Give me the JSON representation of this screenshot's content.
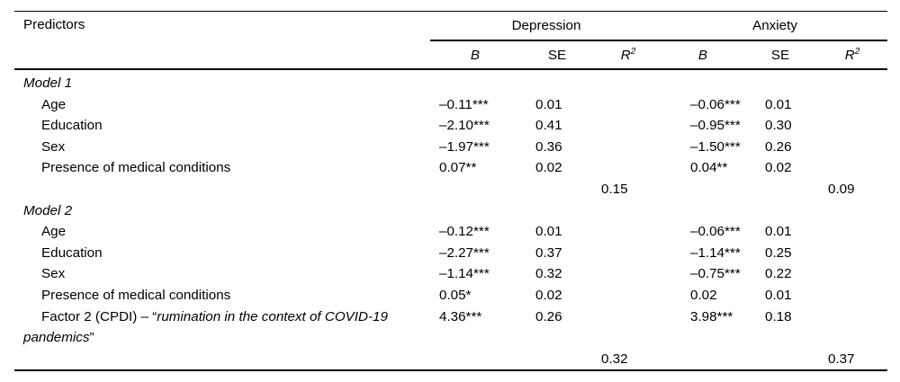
{
  "table": {
    "header": {
      "predictors": "Predictors",
      "group_depression": "Depression",
      "group_anxiety": "Anxiety",
      "col_b": "B",
      "col_se": "SE",
      "col_r2_base": "R",
      "col_r2_sup": "2"
    },
    "rows": [
      {
        "type": "model",
        "label": "Model 1"
      },
      {
        "type": "predictor",
        "label": "Age",
        "dep_b": "–0.11***",
        "dep_se": "0.01",
        "anx_b": "–0.06***",
        "anx_se": "0.01"
      },
      {
        "type": "predictor",
        "label": "Education",
        "dep_b": "–2.10***",
        "dep_se": "0.41",
        "anx_b": "–0.95***",
        "anx_se": "0.30"
      },
      {
        "type": "predictor",
        "label": "Sex",
        "dep_b": "–1.97***",
        "dep_se": "0.36",
        "anx_b": "–1.50***",
        "anx_se": "0.26"
      },
      {
        "type": "predictor",
        "label": "Presence of medical conditions",
        "dep_b": "0.07**",
        "dep_se": "0.02",
        "anx_b": "0.04**",
        "anx_se": "0.02"
      },
      {
        "type": "r2",
        "dep_r2": "0.15",
        "anx_r2": "0.09"
      },
      {
        "type": "model",
        "label": "Model 2"
      },
      {
        "type": "predictor",
        "label": "Age",
        "dep_b": "–0.12***",
        "dep_se": "0.01",
        "anx_b": "–0.06***",
        "anx_se": "0.01"
      },
      {
        "type": "predictor",
        "label": "Education",
        "dep_b": "–2.27***",
        "dep_se": "0.37",
        "anx_b": "–1.14***",
        "anx_se": "0.25"
      },
      {
        "type": "predictor",
        "label": "Sex",
        "dep_b": "–1.14***",
        "dep_se": "0.32",
        "anx_b": "–0.75***",
        "anx_se": "0.22"
      },
      {
        "type": "predictor",
        "label": "Presence of medical conditions",
        "dep_b": "0.05*",
        "dep_se": "0.02",
        "anx_b": "0.02",
        "anx_se": "0.01"
      },
      {
        "type": "factor",
        "label_prefix": "Factor 2 (CPDI) – “",
        "label_italic": "rumination in the context of COVID-19 pandemics",
        "label_suffix": "”",
        "dep_b": "4.36***",
        "dep_se": "0.26",
        "anx_b": "3.98***",
        "anx_se": "0.18"
      },
      {
        "type": "r2",
        "dep_r2": "0.32",
        "anx_r2": "0.37"
      }
    ]
  },
  "colors": {
    "text": "#000000",
    "background": "#ffffff",
    "rule": "#000000"
  }
}
